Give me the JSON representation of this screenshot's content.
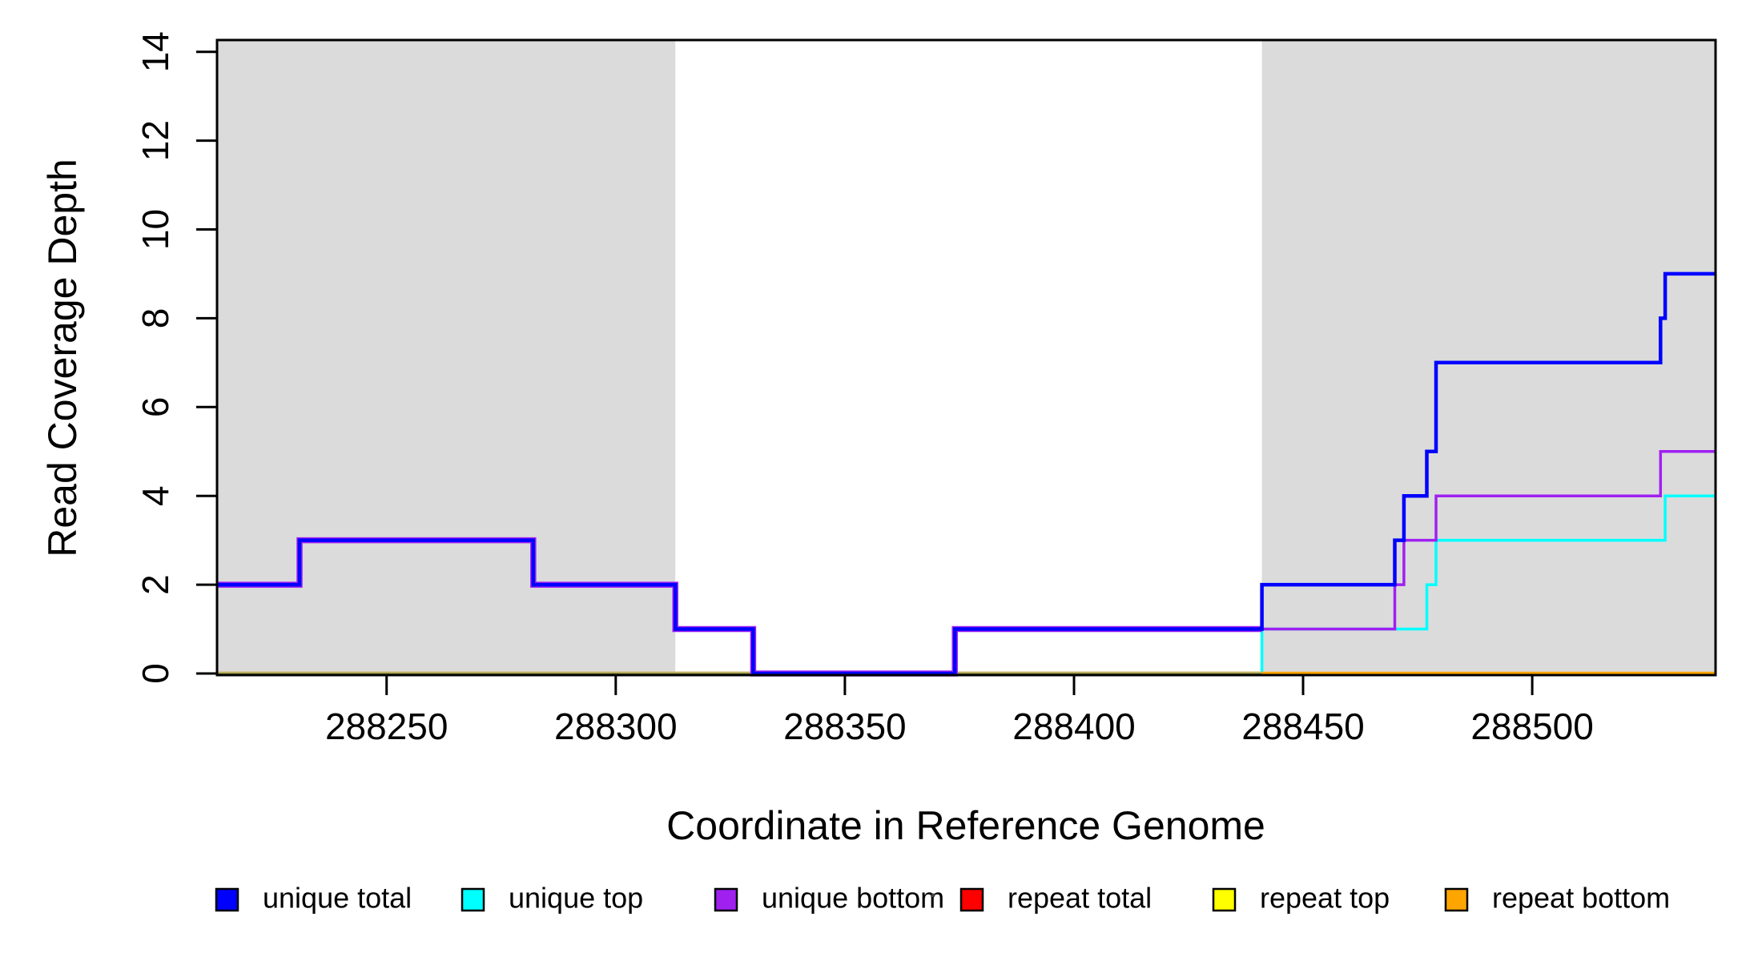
{
  "figure": {
    "x_axis_title": "Coordinate in Reference Genome",
    "y_axis_title": "Read Coverage Depth"
  },
  "chart_data": {
    "type": "line",
    "subtype": "step",
    "title": "",
    "xlabel": "Coordinate in Reference Genome",
    "ylabel": "Read Coverage Depth",
    "xlim": [
      288213,
      288540
    ],
    "ylim": [
      0,
      14
    ],
    "x_ticks": [
      288250,
      288300,
      288350,
      288400,
      288450,
      288500
    ],
    "y_ticks": [
      0,
      2,
      4,
      6,
      8,
      10,
      12,
      14
    ],
    "grid": false,
    "legend_position": "bottom",
    "background_shading_color": "#dbdbdb",
    "shaded_regions": [
      {
        "x0": 288213,
        "x1": 288313
      },
      {
        "x0": 288441,
        "x1": 288540
      }
    ],
    "series": [
      {
        "name": "unique total",
        "color": "#0000ff",
        "points": [
          [
            288213,
            2
          ],
          [
            288231,
            3
          ],
          [
            288282,
            2
          ],
          [
            288313,
            1
          ],
          [
            288330,
            0
          ],
          [
            288374,
            1
          ],
          [
            288441,
            2
          ],
          [
            288470,
            3
          ],
          [
            288472,
            4
          ],
          [
            288477,
            5
          ],
          [
            288479,
            7
          ],
          [
            288528,
            8
          ],
          [
            288529,
            9
          ],
          [
            288540,
            9
          ]
        ]
      },
      {
        "name": "unique top",
        "color": "#00ffff",
        "points": [
          [
            288213,
            0
          ],
          [
            288441,
            1
          ],
          [
            288477,
            2
          ],
          [
            288479,
            3
          ],
          [
            288529,
            4
          ],
          [
            288540,
            4
          ]
        ]
      },
      {
        "name": "unique bottom",
        "color": "#a020f0",
        "points": [
          [
            288213,
            2
          ],
          [
            288231,
            3
          ],
          [
            288282,
            2
          ],
          [
            288313,
            1
          ],
          [
            288330,
            0
          ],
          [
            288374,
            1
          ],
          [
            288470,
            2
          ],
          [
            288472,
            3
          ],
          [
            288479,
            4
          ],
          [
            288528,
            5
          ],
          [
            288540,
            5
          ]
        ]
      },
      {
        "name": "repeat total",
        "color": "#ff0000",
        "points": [
          [
            288213,
            0
          ],
          [
            288540,
            0
          ]
        ]
      },
      {
        "name": "repeat top",
        "color": "#ffff00",
        "points": [
          [
            288213,
            0
          ],
          [
            288540,
            0
          ]
        ]
      },
      {
        "name": "repeat bottom",
        "color": "#ffa500",
        "points": [
          [
            288213,
            0
          ],
          [
            288540,
            0
          ]
        ]
      }
    ]
  },
  "legend": {
    "items": [
      {
        "label": "unique total",
        "color": "#0000ff"
      },
      {
        "label": "unique top",
        "color": "#00ffff"
      },
      {
        "label": "unique bottom",
        "color": "#a020f0"
      },
      {
        "label": "repeat total",
        "color": "#ff0000"
      },
      {
        "label": "repeat top",
        "color": "#ffff00"
      },
      {
        "label": "repeat bottom",
        "color": "#ffa500"
      }
    ]
  }
}
